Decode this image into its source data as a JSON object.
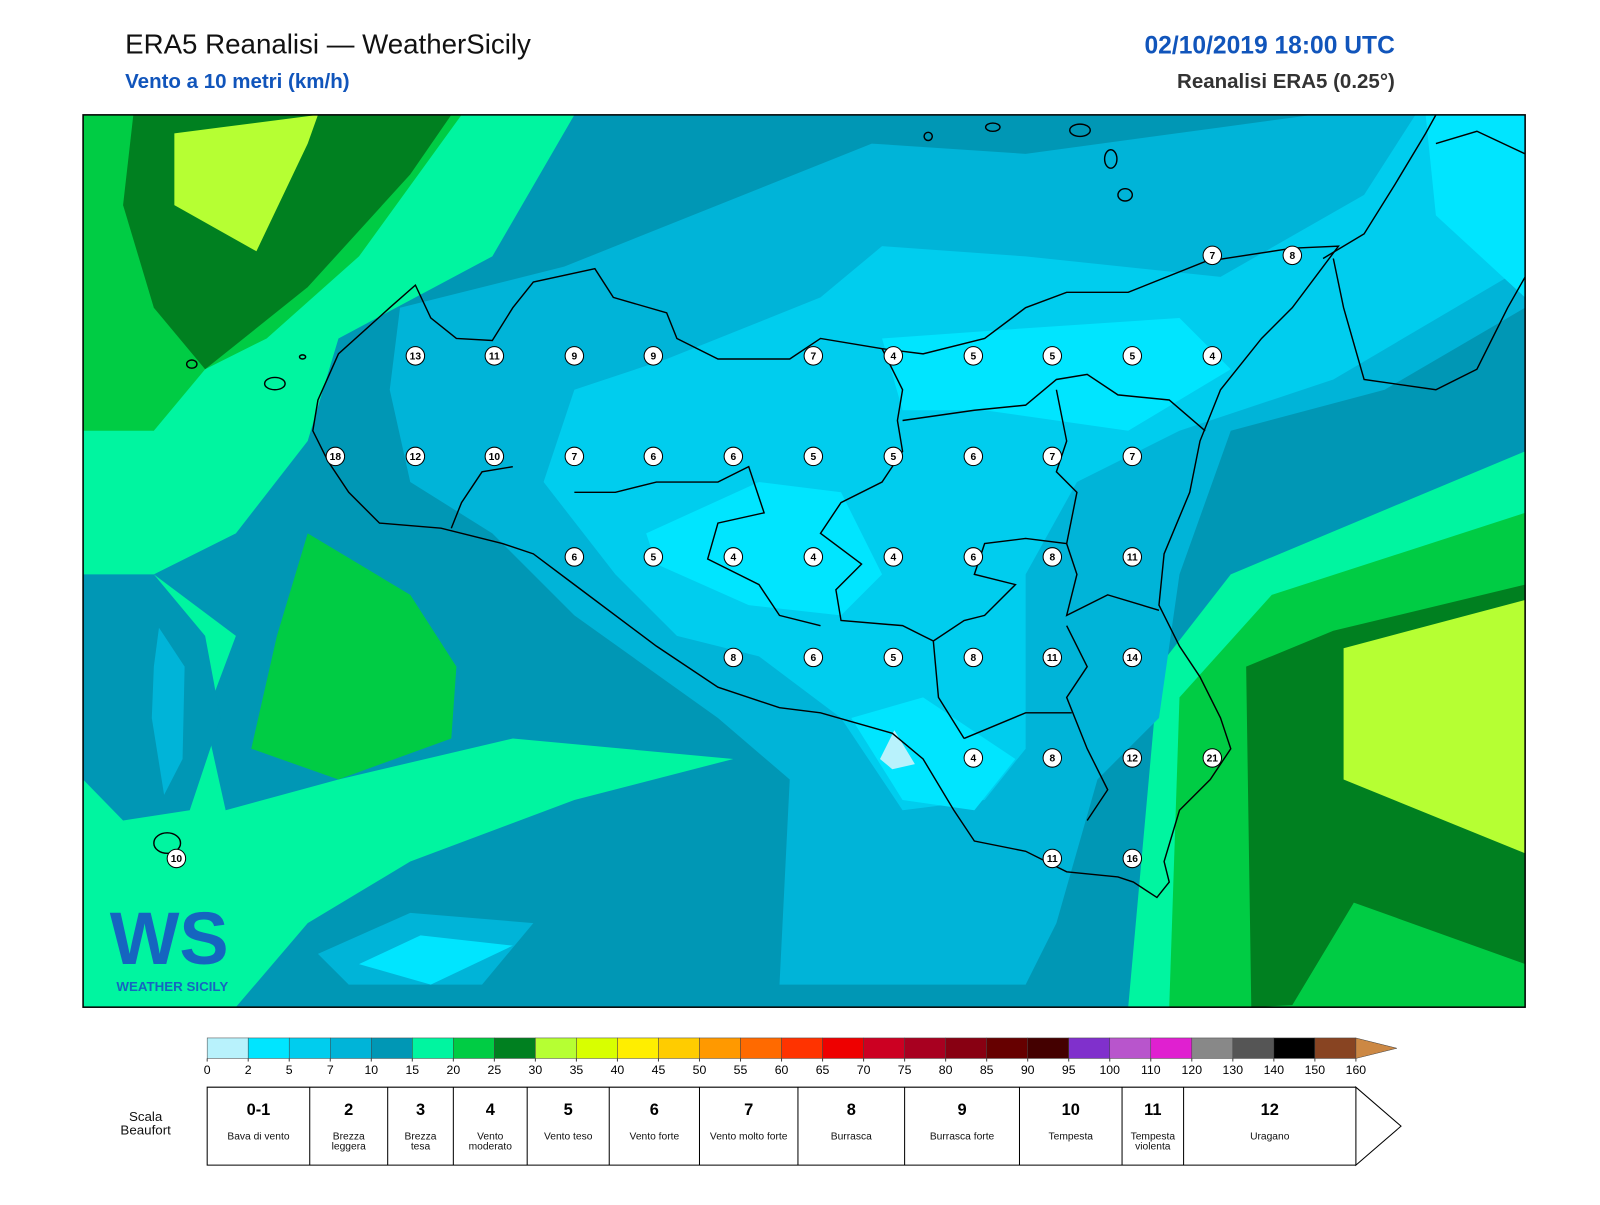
{
  "header": {
    "title": "ERA5 Reanalisi — WeatherSicily",
    "subtitle": "Vento a 10 metri (km/h)",
    "datetime": "02/10/2019 18:00 UTC",
    "source": "Reanalisi ERA5 (0.25°)"
  },
  "map": {
    "stations": [
      7,
      8,
      13,
      11,
      9,
      9,
      7,
      4,
      5,
      5,
      5,
      4,
      18,
      12,
      10,
      7,
      6,
      6,
      5,
      5,
      6,
      7,
      7,
      6,
      5,
      4,
      4,
      4,
      6,
      8,
      11,
      8,
      6,
      5,
      8,
      11,
      14,
      4,
      8,
      12,
      21,
      10,
      11,
      16
    ]
  },
  "logo": {
    "mark": "WS",
    "text": "WEATHER SICILY"
  },
  "colorbar": {
    "ticks": [
      0,
      2,
      5,
      7,
      10,
      15,
      20,
      25,
      30,
      35,
      40,
      45,
      50,
      55,
      60,
      65,
      70,
      75,
      80,
      85,
      90,
      95,
      100,
      110,
      120,
      130,
      140,
      150,
      160
    ],
    "colors": [
      "#b8f2fc",
      "#00e5ff",
      "#00cdee",
      "#00b4d8",
      "#0097b5",
      "#00f5a0",
      "#00cc44",
      "#008020",
      "#b6ff33",
      "#d8ff00",
      "#ffee00",
      "#ffcc00",
      "#ff9900",
      "#ff6a00",
      "#ff3300",
      "#ee0000",
      "#cc0022",
      "#a80020",
      "#880012",
      "#660000",
      "#440000",
      "#8030cc",
      "#b855cc",
      "#e020d0",
      "#888888",
      "#555555",
      "#000000",
      "#884422",
      "#cc8844"
    ]
  },
  "beaufort": {
    "label": "Scala Beaufort",
    "levels": [
      {
        "force": "0-1",
        "name": "Bava di vento"
      },
      {
        "force": 2,
        "name": "Brezza leggera"
      },
      {
        "force": 3,
        "name": "Brezza tesa"
      },
      {
        "force": 4,
        "name": "Vento moderato"
      },
      {
        "force": 5,
        "name": "Vento teso"
      },
      {
        "force": 6,
        "name": "Vento forte"
      },
      {
        "force": 7,
        "name": "Vento molto forte"
      },
      {
        "force": 8,
        "name": "Burrasca"
      },
      {
        "force": 9,
        "name": "Burrasca forte"
      },
      {
        "force": 10,
        "name": "Tempesta"
      },
      {
        "force": 11,
        "name": "Tempesta violenta"
      },
      {
        "force": 12,
        "name": "Uragano"
      }
    ]
  }
}
